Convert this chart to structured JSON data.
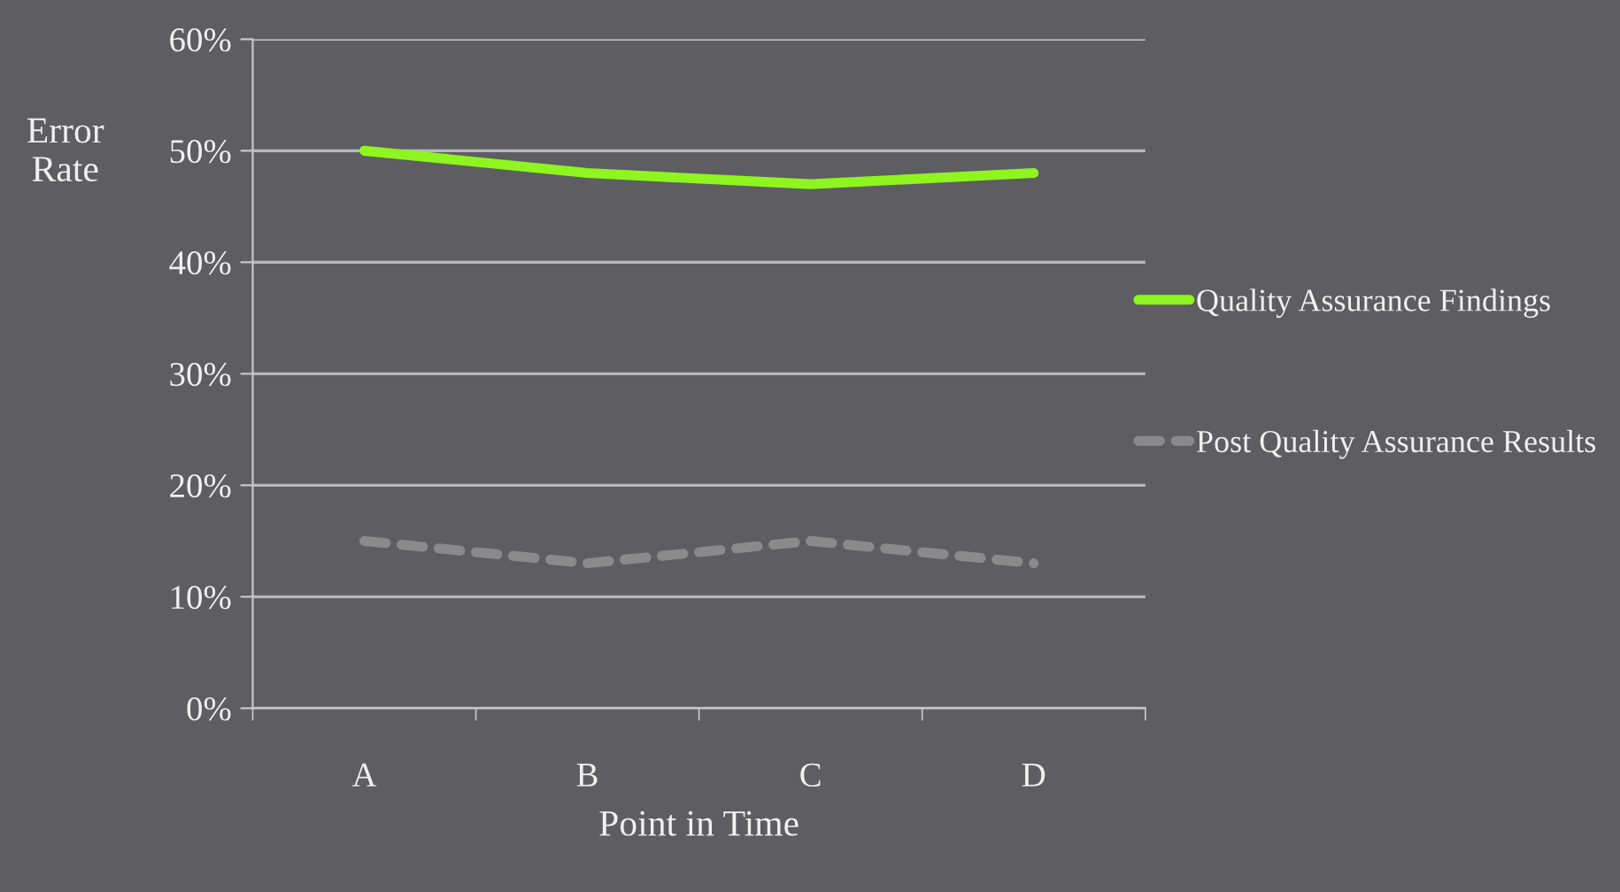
{
  "chart_data": {
    "type": "line",
    "xlabel": "Point in Time",
    "ylabel": "Error Rate",
    "categories": [
      "A",
      "B",
      "C",
      "D"
    ],
    "series": [
      {
        "name": "Quality Assurance Findings",
        "color": "#8ef51f",
        "values": [
          50,
          48,
          47,
          48
        ],
        "line_style": "solid"
      },
      {
        "name": "Post Quality Assurance Results",
        "color": "#8a8a8c",
        "values": [
          15,
          13,
          15,
          13
        ],
        "line_style": "dashed"
      }
    ],
    "ylim": [
      0,
      60
    ],
    "yticks": [
      {
        "value": 0,
        "label": "0%"
      },
      {
        "value": 10,
        "label": "10%"
      },
      {
        "value": 20,
        "label": "20%"
      },
      {
        "value": 30,
        "label": "30%"
      },
      {
        "value": 40,
        "label": "40%"
      },
      {
        "value": 50,
        "label": "50%"
      },
      {
        "value": 60,
        "label": "60%"
      }
    ],
    "grid": "y",
    "legend": "right",
    "marker": "none"
  }
}
